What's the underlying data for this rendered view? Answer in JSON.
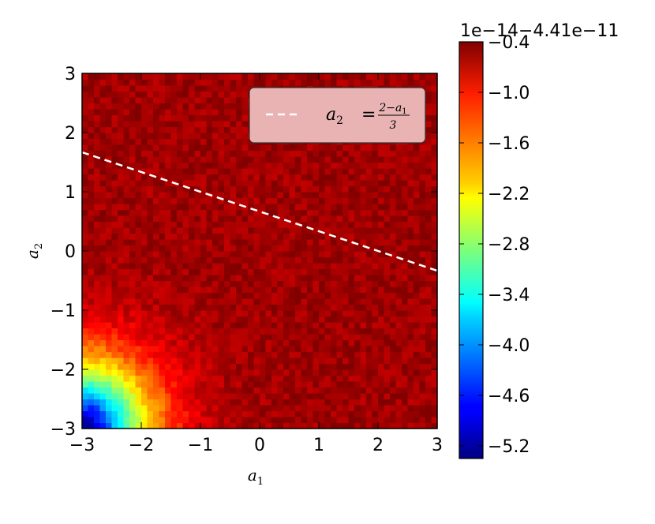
{
  "chart_data": {
    "type": "heatmap",
    "x": {
      "label": "a",
      "label_sub": "1",
      "lim": [
        -3,
        3
      ],
      "ticks": [
        -3,
        -2,
        -1,
        0,
        1,
        2,
        3
      ]
    },
    "y": {
      "label": "a",
      "label_sub": "2",
      "lim": [
        -3,
        3
      ],
      "ticks": [
        -3,
        -2,
        -1,
        0,
        1,
        2,
        3
      ]
    },
    "grid_bins": 60,
    "colormap": "jet",
    "colorbar": {
      "offset_text": "1e−14−4.41e−11",
      "ticks": [
        "−0.4",
        "−1.0",
        "−1.6",
        "−2.2",
        "−2.8",
        "−3.4",
        "−4.0",
        "−4.6",
        "−5.2"
      ],
      "range": [
        -5.35,
        -0.4
      ]
    },
    "surface": {
      "description_free_values": true,
      "background_level": -0.55,
      "minimum_level": -5.3,
      "minimum_at": [
        -3,
        -3
      ]
    },
    "overlay_line": {
      "style": "dashed",
      "color": "#ffffff",
      "x": [
        -3,
        3
      ],
      "y": [
        1.6667,
        -0.3333
      ]
    },
    "legend": {
      "placement": "top-right",
      "entry": {
        "lhs": "a",
        "lhs_sub": "2",
        "eq": "=",
        "num": "2−a",
        "num_sub": "1",
        "den": "3"
      },
      "background": "#e9b3b3"
    }
  }
}
